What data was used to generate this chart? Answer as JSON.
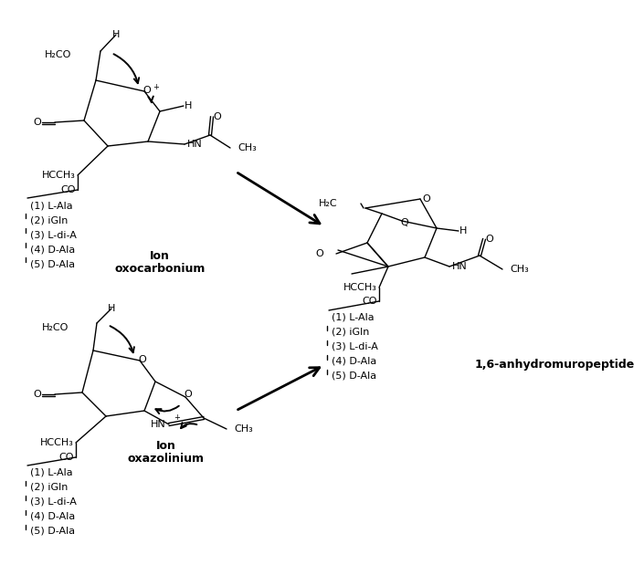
{
  "bg_color": "#ffffff",
  "fig_width": 6.09,
  "fig_height": 5.99,
  "top_left": {
    "peptide_list": [
      "(1) L-Ala",
      "(2) iGln",
      "(3) L-di-A",
      "(4) D-Ala",
      "(5) D-Ala"
    ],
    "ion1": "Ion",
    "ion2": "oxocarbonium"
  },
  "bottom_left": {
    "peptide_list": [
      "(1) L-Ala",
      "(2) iGln",
      "(3) L-di-A",
      "(4) D-Ala",
      "(5) D-Ala"
    ],
    "ion1": "Ion",
    "ion2": "oxazolinium"
  },
  "right": {
    "peptide_list": [
      "(1) L-Ala",
      "(2) iGln",
      "(3) L-di-A",
      "(4) D-Ala",
      "(5) D-Ala"
    ],
    "anhydro": "1,6-anhydromuropeptide"
  }
}
